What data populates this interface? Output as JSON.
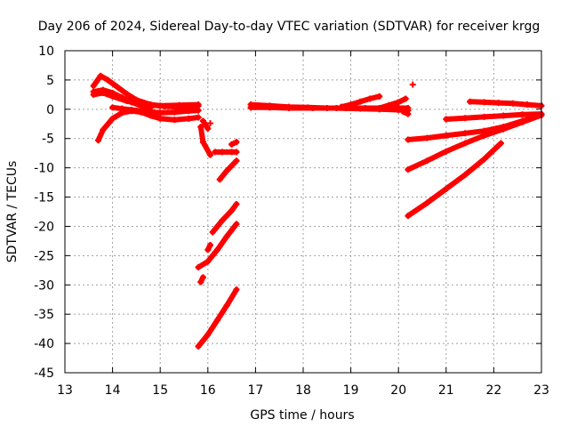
{
  "chart_data": {
    "type": "scatter",
    "title": "Day 206 of 2024, Sidereal Day-to-day VTEC variation (SDTVAR) for receiver krgg",
    "xlabel": "GPS time / hours",
    "ylabel": "SDTVAR / TECUs",
    "xlim": [
      13,
      23
    ],
    "ylim": [
      -45,
      10
    ],
    "xticks": [
      13,
      14,
      15,
      16,
      17,
      18,
      19,
      20,
      21,
      22,
      23
    ],
    "yticks": [
      10,
      5,
      0,
      -5,
      -10,
      -15,
      -20,
      -25,
      -30,
      -35,
      -40,
      -45
    ],
    "grid": true,
    "marker": "+",
    "color": "#ff0000",
    "series": [
      {
        "x": [
          13.6,
          13.75,
          13.9,
          14.1,
          14.3,
          14.5,
          14.8,
          15.1,
          15.4,
          15.8
        ],
        "y": [
          4.0,
          5.7,
          5.0,
          3.8,
          2.6,
          1.6,
          0.8,
          0.5,
          0.4,
          0.6
        ]
      },
      {
        "x": [
          13.6,
          13.8,
          14.0,
          14.2,
          14.4,
          14.6,
          14.8
        ],
        "y": [
          3.0,
          3.3,
          2.8,
          2.0,
          1.2,
          0.6,
          0.3
        ]
      },
      {
        "x": [
          13.6,
          13.8,
          14.0,
          14.3,
          14.6,
          15.0,
          15.4,
          15.8
        ],
        "y": [
          2.5,
          2.8,
          2.2,
          1.4,
          0.8,
          0.6,
          0.7,
          0.8
        ]
      },
      {
        "x": [
          13.7,
          13.8,
          14.0,
          14.2,
          14.4,
          14.6,
          14.8,
          15.0,
          15.3,
          15.6,
          15.8
        ],
        "y": [
          -5.3,
          -3.5,
          -1.6,
          -0.6,
          -0.3,
          -0.5,
          -1.1,
          -1.6,
          -1.8,
          -1.6,
          -1.4
        ]
      },
      {
        "x": [
          14.0,
          14.2,
          14.4,
          14.7,
          15.0,
          15.3,
          15.6,
          15.8
        ],
        "y": [
          0.3,
          0.1,
          -0.1,
          -0.4,
          -0.6,
          -0.5,
          -0.3,
          -0.2
        ]
      },
      {
        "x": [
          15.85,
          15.9,
          16.05
        ],
        "y": [
          -3.0,
          -5.6,
          -7.8
        ]
      },
      {
        "x": [
          15.9,
          16.0
        ],
        "y": [
          -2.0,
          -3.3
        ]
      },
      {
        "x": [
          16.05
        ],
        "y": [
          -2.4
        ]
      },
      {
        "x": [
          16.15,
          16.3,
          16.5,
          16.6
        ],
        "y": [
          -7.3,
          -7.3,
          -7.3,
          -7.3
        ]
      },
      {
        "x": [
          16.5,
          16.6
        ],
        "y": [
          -6.0,
          -5.6
        ]
      },
      {
        "x": [
          16.25,
          16.4,
          16.6
        ],
        "y": [
          -12.0,
          -10.5,
          -8.8
        ]
      },
      {
        "x": [
          16.1,
          16.3,
          16.5,
          16.6
        ],
        "y": [
          -21.0,
          -19.0,
          -17.3,
          -16.2
        ]
      },
      {
        "x": [
          16.0,
          16.05
        ],
        "y": [
          -24.0,
          -23.2
        ]
      },
      {
        "x": [
          15.8,
          16.0,
          16.2,
          16.4,
          16.6
        ],
        "y": [
          -27.0,
          -26.0,
          -24.0,
          -21.7,
          -19.6
        ]
      },
      {
        "x": [
          15.85,
          15.9
        ],
        "y": [
          -29.5,
          -28.7
        ]
      },
      {
        "x": [
          15.8,
          16.0,
          16.2,
          16.4,
          16.6
        ],
        "y": [
          -40.5,
          -38.5,
          -36.0,
          -33.5,
          -30.8
        ]
      },
      {
        "x": [
          16.9,
          17.3,
          17.7,
          18.1,
          18.5,
          18.9,
          19.3,
          19.7,
          20.0,
          20.2
        ],
        "y": [
          0.8,
          0.6,
          0.4,
          0.3,
          0.2,
          0.2,
          0.2,
          0.2,
          0.2,
          0.2
        ]
      },
      {
        "x": [
          16.9,
          17.3,
          17.7,
          18.2,
          18.7,
          19.2,
          19.6,
          20.0,
          20.2
        ],
        "y": [
          0.3,
          0.3,
          0.2,
          0.2,
          0.2,
          0.1,
          0.0,
          -0.1,
          -0.2
        ]
      },
      {
        "x": [
          18.8,
          19.0,
          19.2,
          19.4,
          19.6
        ],
        "y": [
          0.4,
          0.8,
          1.3,
          1.8,
          2.2
        ]
      },
      {
        "x": [
          19.6,
          19.8,
          20.0,
          20.15
        ],
        "y": [
          0.2,
          0.7,
          1.2,
          1.8
        ]
      },
      {
        "x": [
          20.1,
          20.2
        ],
        "y": [
          -0.4,
          -0.8
        ]
      },
      {
        "x": [
          20.3
        ],
        "y": [
          4.2
        ]
      },
      {
        "x": [
          21.5,
          21.8,
          22.1,
          22.4,
          22.7,
          23.0
        ],
        "y": [
          1.3,
          1.2,
          1.1,
          1.0,
          0.8,
          0.6
        ]
      },
      {
        "x": [
          21.0,
          21.4,
          21.8,
          22.2,
          22.6,
          23.0
        ],
        "y": [
          -1.7,
          -1.5,
          -1.3,
          -1.1,
          -0.9,
          -0.8
        ]
      },
      {
        "x": [
          20.2,
          20.6,
          21.0,
          21.4,
          21.8,
          22.2,
          22.6,
          23.0
        ],
        "y": [
          -5.2,
          -4.9,
          -4.5,
          -4.1,
          -3.7,
          -3.0,
          -2.0,
          -1.0
        ]
      },
      {
        "x": [
          20.2,
          20.6,
          21.0,
          21.4,
          21.8,
          22.2,
          22.6,
          23.0
        ],
        "y": [
          -10.3,
          -8.8,
          -7.2,
          -5.8,
          -4.5,
          -3.4,
          -2.2,
          -1.0
        ]
      },
      {
        "x": [
          20.2,
          20.6,
          21.0,
          21.4,
          21.8,
          22.15
        ],
        "y": [
          -18.2,
          -16.0,
          -13.6,
          -11.2,
          -8.5,
          -5.8
        ]
      }
    ]
  }
}
